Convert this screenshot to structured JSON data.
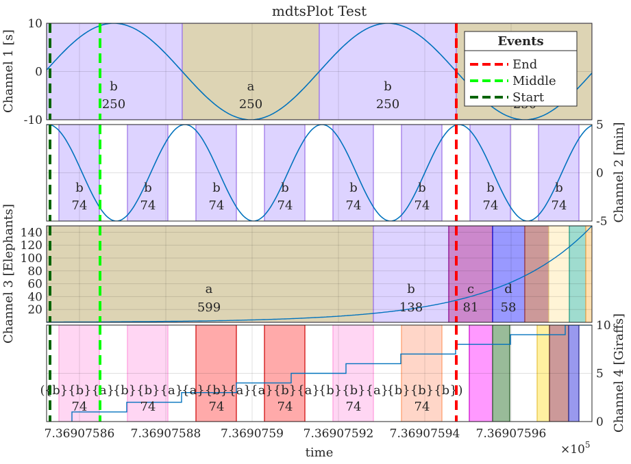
{
  "chart_data": {
    "type": "line",
    "title": "mdtsPlot Test",
    "xlabel": "time",
    "x_exponent_base": "×10",
    "x_exponent_power": "5",
    "xlim": [
      7.36907585,
      7.369075966
    ],
    "xticks": [
      7.36907586,
      7.36907588,
      7.3690759,
      7.36907592,
      7.36907594,
      7.36907596
    ],
    "xtick_labels": [
      "7.36907586",
      "7.36907588",
      "7.3690759",
      "7.36907592",
      "7.36907594",
      "7.36907596"
    ],
    "legend_title": "Events",
    "legend_location": "top-right",
    "grid": true,
    "events": [
      {
        "name": "End",
        "x": 7.36907594,
        "color": "#ff0000"
      },
      {
        "name": "Middle",
        "x": 7.369075865,
        "color": "#00ff00"
      },
      {
        "name": "Start",
        "x": 7.369075855,
        "color": "#006400"
      }
    ],
    "series_color": "#0072bd",
    "panels": [
      {
        "ylabel": "Channel 1 [s]",
        "yaxis_side": "left",
        "ylim": [
          -10,
          10
        ],
        "yticks": [
          -10,
          0,
          10
        ],
        "ytick_labels": [
          "-10",
          "0",
          "10"
        ],
        "series": {
          "kind": "sine",
          "amplitude": 10,
          "period": 4e-08,
          "phase_x": 7.369075855
        },
        "regions": [
          {
            "x0": 7.36907585,
            "x1": 7.36907589,
            "fill": "#ccccff",
            "edge": "#9966ff"
          },
          {
            "x0": 7.36907589,
            "x1": 7.36907593,
            "fill": "#cccc99",
            "edge": "#9966cc"
          },
          {
            "x0": 7.36907593,
            "x1": 7.36907594,
            "fill": "#ccccff",
            "edge": "#9966ff"
          },
          {
            "x0": 7.36907594,
            "x1": 7.369075966,
            "fill": "#cccc99",
            "edge": "#9966cc"
          }
        ],
        "labels": [
          {
            "cat": "b",
            "count": "250",
            "x": 7.369075869
          },
          {
            "cat": "a",
            "count": "250",
            "x": 7.369075909
          },
          {
            "cat": "b",
            "count": "250",
            "x": 7.369075949
          },
          {
            "cat": "",
            "count": "250",
            "x": 7.369075989
          }
        ]
      },
      {
        "ylabel": "Channel 2 [min]",
        "yaxis_side": "right",
        "ylim": [
          -5,
          5
        ],
        "yticks": [
          -5,
          0,
          5
        ],
        "ytick_labels": [
          "-5",
          "0",
          "5"
        ],
        "series": {
          "kind": "sine",
          "amplitude": 5,
          "period": 2e-08,
          "phase_x": 7.369075849
        },
        "regions": [
          {
            "x0": 7.369075853,
            "x1": 7.369075869,
            "fill": "#ccccff",
            "edge": "#9966ff"
          },
          {
            "x0": 7.369075873,
            "x1": 7.369075889,
            "fill": "#ccccff",
            "edge": "#9966ff"
          },
          {
            "x0": 7.369075893,
            "x1": 7.369075909,
            "fill": "#ccccff",
            "edge": "#9966ff"
          },
          {
            "x0": 7.369075913,
            "x1": 7.369075929,
            "fill": "#ccccff",
            "edge": "#9966ff"
          },
          {
            "x0": 7.369075933,
            "x1": 7.369075949,
            "fill": "#ccccff",
            "edge": "#9966ff"
          },
          {
            "x0": 7.369075953,
            "x1": 7.369075966,
            "fill": "#ccccff",
            "edge": "#9966ff"
          }
        ],
        "labels": [
          {
            "cat": "b",
            "count": "74",
            "x": 7.369075859
          },
          {
            "cat": "b",
            "count": "74",
            "x": 7.369075879
          },
          {
            "cat": "b",
            "count": "74",
            "x": 7.369075899
          },
          {
            "cat": "b",
            "count": "74",
            "x": 7.369075919
          },
          {
            "cat": "b",
            "count": "74",
            "x": 7.369075939
          },
          {
            "cat": "b",
            "count": "74",
            "x": 7.369075959
          },
          {
            "cat": "b",
            "count": "74",
            "x": 7.369075979
          },
          {
            "cat": "b",
            "count": "74",
            "x": 7.369075999
          }
        ]
      },
      {
        "ylabel": "Channel 3 [Elephants]",
        "yaxis_side": "left",
        "ylim": [
          0,
          150
        ],
        "yticks": [
          20,
          40,
          60,
          80,
          100,
          120,
          140
        ],
        "ytick_labels": [
          "20",
          "40",
          "60",
          "80",
          "100",
          "120",
          "140"
        ],
        "series": {
          "kind": "exp",
          "y0": 0.4,
          "growth": 60000000
        },
        "regions": [
          {
            "x0": 7.36907585,
            "x1": 7.369075945,
            "fill": "#cccc99",
            "edge": "#9966cc"
          },
          {
            "x0": 7.369075945,
            "x1": 7.36907594,
            "fill": "#ccccff",
            "edge": "#9966ff"
          }
        ],
        "labels": [
          {
            "cat": "a",
            "count": "599",
            "x": 7.369075897
          },
          {
            "cat": "b",
            "count": "138",
            "x": 7.369075926
          },
          {
            "cat": "c",
            "count": "81",
            "x": 7.369075943
          },
          {
            "cat": "d",
            "count": "58",
            "x": 7.369075954
          }
        ]
      },
      {
        "ylabel": "Channel 4 [Giraffs]",
        "yaxis_side": "right",
        "ylim": [
          0,
          10
        ],
        "yticks": [
          0,
          5,
          10
        ],
        "ytick_labels": [
          "0",
          "5",
          "10"
        ],
        "series": {
          "kind": "steps",
          "levels": [
            1,
            2,
            3,
            4,
            5,
            6,
            7,
            8,
            9,
            10
          ],
          "step_width": 1e-08,
          "start": 7.369075858
        },
        "regions": [],
        "labels": [
          {
            "cat": "{b}{b}{a}",
            "count": "74",
            "x": 7.369075859
          },
          {
            "cat": "{b}{b}{a}",
            "count": "74",
            "x": 7.369075879
          },
          {
            "cat": "{a}{b}{a}",
            "count": "74",
            "x": 7.369075899
          },
          {
            "cat": "{a}{b}{a}",
            "count": "74",
            "x": 7.369075919
          },
          {
            "cat": "{b}{b}{a}",
            "count": "74",
            "x": 7.369075939
          },
          {
            "cat": "{b}{b}{b}",
            "count": "74",
            "x": 7.369075959
          }
        ]
      }
    ]
  }
}
